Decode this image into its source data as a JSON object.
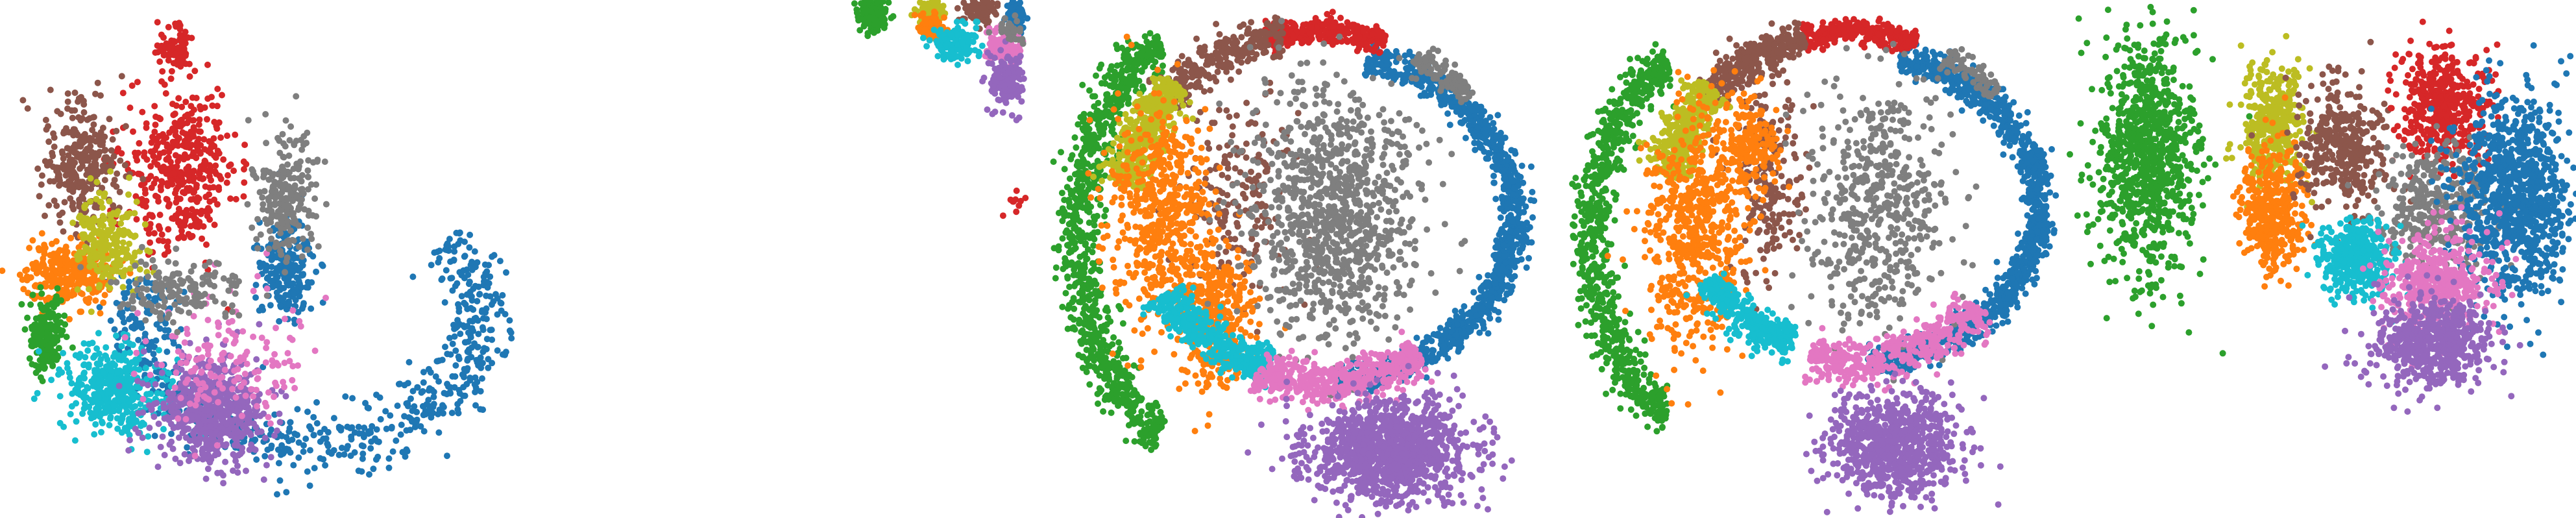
{
  "chart_data": [
    {
      "type": "scatter",
      "title": "",
      "xlabel": "",
      "ylabel": "",
      "grid": false,
      "legend": "none",
      "xlim": [
        0,
        100
      ],
      "ylim": [
        0,
        100
      ],
      "series": [
        {
          "color": "#1f77b4",
          "points": 900,
          "clusters": [
            {
              "arc": [
                60,
                62,
                33,
                24,
                -40,
                200
              ],
              "w": 5.5,
              "n": 700
            },
            {
              "blob": [
                55,
                52,
                4,
                8
              ],
              "n": 200
            }
          ]
        },
        {
          "color": "#d62728",
          "points": 500,
          "clusters": [
            {
              "blob": [
                35,
                33,
                9,
                13
              ],
              "n": 420
            },
            {
              "blob": [
                34,
                10,
                3,
                4
              ],
              "n": 80
            }
          ]
        },
        {
          "color": "#8c564b",
          "points": 300,
          "clusters": [
            {
              "blob": [
                16,
                32,
                6,
                10
              ],
              "n": 300
            }
          ]
        },
        {
          "color": "#ff7f0e",
          "points": 300,
          "clusters": [
            {
              "blob": [
                13,
                53,
                7,
                5
              ],
              "n": 300
            }
          ]
        },
        {
          "color": "#bcbd22",
          "points": 220,
          "clusters": [
            {
              "blob": [
                21,
                47,
                5,
                8
              ],
              "n": 220
            }
          ]
        },
        {
          "color": "#2ca02c",
          "points": 180,
          "clusters": [
            {
              "blob": [
                9,
                65,
                3,
                6
              ],
              "n": 180
            }
          ]
        },
        {
          "color": "#17becf",
          "points": 400,
          "clusters": [
            {
              "blob": [
                22,
                75,
                8,
                7
              ],
              "n": 400
            }
          ]
        },
        {
          "color": "#9467bd",
          "points": 600,
          "clusters": [
            {
              "blob": [
                41,
                79,
                9,
                8
              ],
              "n": 600
            }
          ]
        },
        {
          "color": "#e377c2",
          "points": 160,
          "clusters": [
            {
              "blob": [
                44,
                70,
                12,
                10
              ],
              "n": 160
            }
          ]
        },
        {
          "color": "#7f7f7f",
          "points": 380,
          "clusters": [
            {
              "blob": [
                55,
                38,
                5,
                10
              ],
              "n": 220
            },
            {
              "blob": [
                35,
                56,
                9,
                5
              ],
              "n": 160
            }
          ]
        }
      ]
    },
    {
      "type": "scatter",
      "title": "",
      "xlabel": "",
      "ylabel": "",
      "grid": false,
      "legend": "none",
      "xlim": [
        0,
        100
      ],
      "ylim": [
        0,
        100
      ],
      "series": [
        {
          "color": "#2ca02c",
          "points": 200,
          "clusters": [
            {
              "blob": [
                12,
                4,
                6,
                4
              ],
              "n": 200
            }
          ]
        },
        {
          "color": "#bcbd22",
          "points": 120,
          "clusters": [
            {
              "blob": [
                45,
                4,
                6,
                3
              ],
              "n": 120
            }
          ]
        },
        {
          "color": "#ff7f0e",
          "points": 120,
          "clusters": [
            {
              "blob": [
                45,
                8,
                6,
                3
              ],
              "n": 120
            }
          ]
        },
        {
          "color": "#8c564b",
          "points": 100,
          "clusters": [
            {
              "blob": [
                72,
                3,
                8,
                3
              ],
              "n": 100
            }
          ]
        },
        {
          "color": "#1f77b4",
          "points": 80,
          "clusters": [
            {
              "blob": [
                92,
                5,
                4,
                4
              ],
              "n": 80
            }
          ]
        },
        {
          "color": "#17becf",
          "points": 150,
          "clusters": [
            {
              "blob": [
                58,
                13,
                10,
                4
              ],
              "n": 150
            }
          ]
        },
        {
          "color": "#e377c2",
          "points": 150,
          "clusters": [
            {
              "blob": [
                85,
                14,
                8,
                4
              ],
              "n": 150
            }
          ]
        },
        {
          "color": "#9467bd",
          "points": 150,
          "clusters": [
            {
              "blob": [
                86,
                24,
                7,
                7
              ],
              "n": 150
            }
          ]
        },
        {
          "color": "#7f7f7f",
          "points": 40,
          "clusters": [
            {
              "blob": [
                88,
                9,
                6,
                3
              ],
              "n": 40
            }
          ]
        },
        {
          "color": "#d62728",
          "points": 10,
          "clusters": [
            {
              "blob": [
                92,
                60,
                4,
                3
              ],
              "n": 10
            }
          ]
        }
      ]
    },
    {
      "type": "scatter",
      "title": "",
      "xlabel": "",
      "ylabel": "",
      "grid": false,
      "legend": "none",
      "xlim": [
        0,
        100
      ],
      "ylim": [
        0,
        100
      ],
      "series": [
        {
          "color": "#2ca02c",
          "points": 900,
          "clusters": [
            {
              "arc": [
                33,
                46,
                24,
                40,
                110,
                250
              ],
              "w": 3.5,
              "n": 900
            }
          ]
        },
        {
          "color": "#1f77b4",
          "points": 1100,
          "clusters": [
            {
              "arc": [
                55,
                42,
                38,
                32,
                -75,
                85
              ],
              "w": 2.5,
              "n": 1100
            }
          ]
        },
        {
          "color": "#d62728",
          "points": 300,
          "clusters": [
            {
              "arc": [
                55,
                42,
                38,
                36,
                -105,
                -70
              ],
              "w": 2,
              "n": 300
            }
          ]
        },
        {
          "color": "#8c564b",
          "points": 500,
          "clusters": [
            {
              "arc": [
                55,
                42,
                38,
                36,
                -140,
                -100
              ],
              "w": 3,
              "n": 300
            },
            {
              "blob": [
                40,
                40,
                8,
                18
              ],
              "n": 200
            }
          ]
        },
        {
          "color": "#bcbd22",
          "points": 450,
          "clusters": [
            {
              "arc": [
                55,
                42,
                38,
                36,
                -170,
                -135
              ],
              "w": 3.5,
              "n": 450
            }
          ]
        },
        {
          "color": "#ff7f0e",
          "points": 900,
          "clusters": [
            {
              "blob": [
                25,
                42,
                8,
                18
              ],
              "n": 550
            },
            {
              "blob": [
                35,
                60,
                6,
                12
              ],
              "n": 350
            }
          ]
        },
        {
          "color": "#7f7f7f",
          "points": 1100,
          "clusters": [
            {
              "blob": [
                58,
                42,
                13,
                20
              ],
              "n": 1000
            },
            {
              "arc": [
                55,
                42,
                38,
                36,
                -60,
                -40
              ],
              "w": 2,
              "n": 100
            }
          ]
        },
        {
          "color": "#17becf",
          "points": 450,
          "clusters": [
            {
              "arc": [
                55,
                42,
                34,
                30,
                105,
                150
              ],
              "w": 3,
              "n": 450
            }
          ]
        },
        {
          "color": "#e377c2",
          "points": 500,
          "clusters": [
            {
              "arc": [
                55,
                42,
                34,
                32,
                55,
                110
              ],
              "w": 3.5,
              "n": 500
            }
          ]
        },
        {
          "color": "#9467bd",
          "points": 1100,
          "clusters": [
            {
              "blob": [
                69,
                87,
                13,
                8
              ],
              "n": 1100
            }
          ]
        }
      ]
    },
    {
      "type": "scatter",
      "title": "",
      "xlabel": "",
      "ylabel": "",
      "grid": false,
      "legend": "none",
      "xlim": [
        0,
        100
      ],
      "ylim": [
        0,
        100
      ],
      "series": [
        {
          "color": "#2ca02c",
          "points": 800,
          "clusters": [
            {
              "arc": [
                30,
                46,
                22,
                36,
                110,
                250
              ],
              "w": 3.5,
              "n": 800
            }
          ]
        },
        {
          "color": "#1f77b4",
          "points": 1100,
          "clusters": [
            {
              "arc": [
                58,
                40,
                36,
                30,
                -75,
                85
              ],
              "w": 2.5,
              "n": 1100
            }
          ]
        },
        {
          "color": "#d62728",
          "points": 280,
          "clusters": [
            {
              "arc": [
                58,
                40,
                36,
                34,
                -105,
                -70
              ],
              "w": 2,
              "n": 280
            }
          ]
        },
        {
          "color": "#8c564b",
          "points": 500,
          "clusters": [
            {
              "arc": [
                58,
                40,
                36,
                34,
                -140,
                -105
              ],
              "w": 3,
              "n": 300
            },
            {
              "blob": [
                42,
                35,
                6,
                16
              ],
              "n": 200
            }
          ]
        },
        {
          "color": "#bcbd22",
          "points": 420,
          "clusters": [
            {
              "arc": [
                58,
                40,
                36,
                34,
                -170,
                -138
              ],
              "w": 3.5,
              "n": 420
            }
          ]
        },
        {
          "color": "#ff7f0e",
          "points": 800,
          "clusters": [
            {
              "blob": [
                28,
                45,
                8,
                18
              ],
              "n": 600
            },
            {
              "blob": [
                38,
                28,
                5,
                8
              ],
              "n": 200
            }
          ]
        },
        {
          "color": "#7f7f7f",
          "points": 600,
          "clusters": [
            {
              "blob": [
                63,
                40,
                11,
                20
              ],
              "n": 520
            },
            {
              "arc": [
                58,
                40,
                36,
                34,
                -60,
                -40
              ],
              "w": 2,
              "n": 80
            }
          ]
        },
        {
          "color": "#17becf",
          "points": 350,
          "clusters": [
            {
              "arc": [
                58,
                40,
                32,
                28,
                110,
                150
              ],
              "w": 3,
              "n": 350
            }
          ]
        },
        {
          "color": "#e377c2",
          "points": 450,
          "clusters": [
            {
              "arc": [
                58,
                40,
                32,
                30,
                40,
                105
              ],
              "w": 3.5,
              "n": 450
            }
          ]
        },
        {
          "color": "#9467bd",
          "points": 850,
          "clusters": [
            {
              "blob": [
                66,
                86,
                10,
                8
              ],
              "n": 850
            }
          ]
        }
      ]
    },
    {
      "type": "scatter",
      "title": "",
      "xlabel": "",
      "ylabel": "",
      "grid": false,
      "legend": "none",
      "xlim": [
        0,
        100
      ],
      "ylim": [
        0,
        100
      ],
      "series": [
        {
          "color": "#2ca02c",
          "points": 900,
          "clusters": [
            {
              "blob": [
                16,
                30,
                8,
                20
              ],
              "n": 900
            }
          ]
        },
        {
          "color": "#bcbd22",
          "points": 380,
          "clusters": [
            {
              "blob": [
                41,
                24,
                5,
                10
              ],
              "n": 380
            }
          ]
        },
        {
          "color": "#ff7f0e",
          "points": 420,
          "clusters": [
            {
              "blob": [
                41,
                40,
                5,
                10
              ],
              "n": 420
            }
          ]
        },
        {
          "color": "#8c564b",
          "points": 350,
          "clusters": [
            {
              "blob": [
                54,
                28,
                7,
                10
              ],
              "n": 350
            }
          ]
        },
        {
          "color": "#d62728",
          "points": 480,
          "clusters": [
            {
              "blob": [
                74,
                20,
                7,
                10
              ],
              "n": 480
            }
          ]
        },
        {
          "color": "#7f7f7f",
          "points": 350,
          "clusters": [
            {
              "blob": [
                73,
                40,
                9,
                10
              ],
              "n": 350
            }
          ]
        },
        {
          "color": "#1f77b4",
          "points": 950,
          "clusters": [
            {
              "blob": [
                88,
                38,
                9,
                16
              ],
              "n": 950
            }
          ]
        },
        {
          "color": "#17becf",
          "points": 400,
          "clusters": [
            {
              "blob": [
                57,
                50,
                6,
                6
              ],
              "n": 400
            }
          ]
        },
        {
          "color": "#e377c2",
          "points": 450,
          "clusters": [
            {
              "blob": [
                73,
                55,
                9,
                8
              ],
              "n": 450
            }
          ]
        },
        {
          "color": "#9467bd",
          "points": 600,
          "clusters": [
            {
              "blob": [
                72,
                66,
                9,
                7
              ],
              "n": 600
            }
          ]
        }
      ]
    }
  ]
}
